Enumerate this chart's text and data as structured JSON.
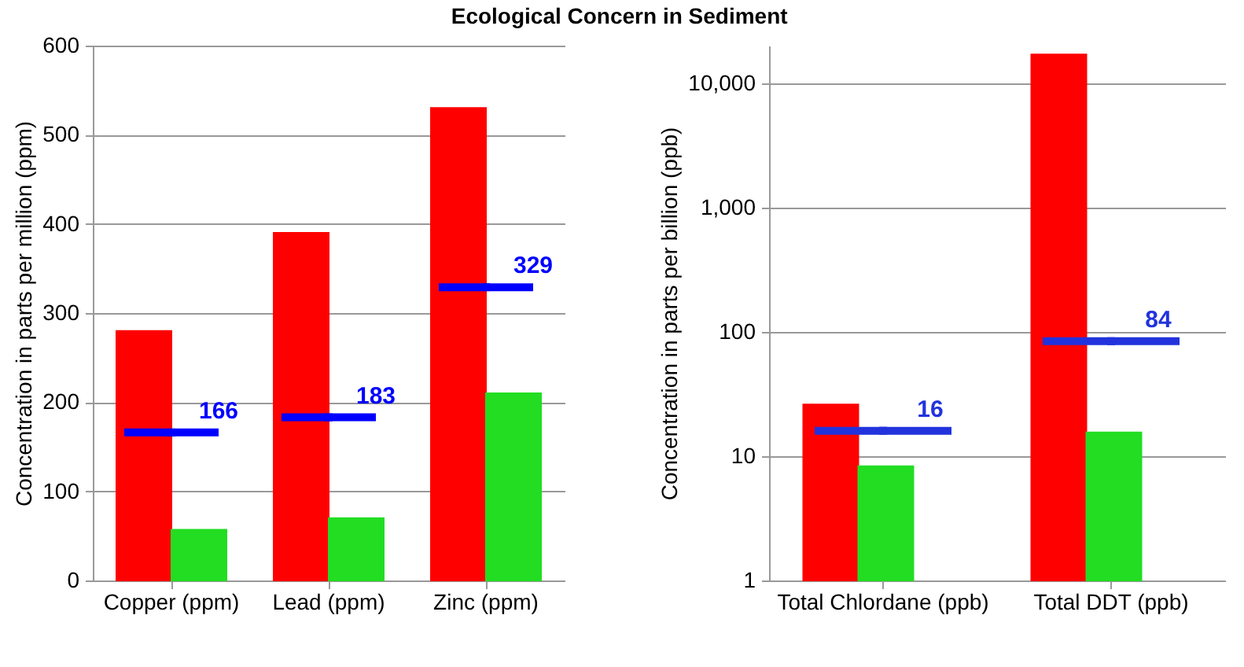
{
  "chart_data": [
    {
      "type": "bar",
      "title": "Ecological Concern in Sediment",
      "ylabel": "Concentration in parts per million (ppm)",
      "categories": [
        "Copper (ppm)",
        "Lead (ppm)",
        "Zinc (ppm)"
      ],
      "series": [
        {
          "color": "#ff0000",
          "values": [
            280,
            390,
            530
          ]
        },
        {
          "color": "#22dd22",
          "values": [
            57,
            70,
            210
          ]
        },
        {
          "type": "scatter",
          "color": "#0000ff",
          "values": [
            166,
            183,
            329
          ],
          "value_labels": [
            "166",
            "183",
            "329"
          ]
        }
      ],
      "ylim": [
        0,
        600
      ],
      "yticks": [
        0,
        100,
        200,
        300,
        400,
        500,
        600
      ],
      "grid": "y"
    },
    {
      "type": "bar",
      "ylabel": "Concentration in parts per billion (ppb)",
      "categories": [
        "Total Chlordane (ppb)",
        "Total DDT (ppb)"
      ],
      "series": [
        {
          "color": "#ff0000",
          "values": [
            26,
            17000
          ]
        },
        {
          "color": "#22dd22",
          "values": [
            8.3,
            15.5
          ]
        },
        {
          "type": "scatter",
          "color": "#2233dd",
          "values": [
            16,
            84
          ],
          "value_labels": [
            "16",
            "84"
          ]
        }
      ],
      "log": "y",
      "ylim": [
        1,
        20000
      ],
      "yticks": [
        1,
        10,
        100,
        {
          "value": 1000,
          "label": "1,000"
        },
        {
          "value": 10000,
          "label": "10,000"
        }
      ],
      "grid": "y"
    }
  ]
}
